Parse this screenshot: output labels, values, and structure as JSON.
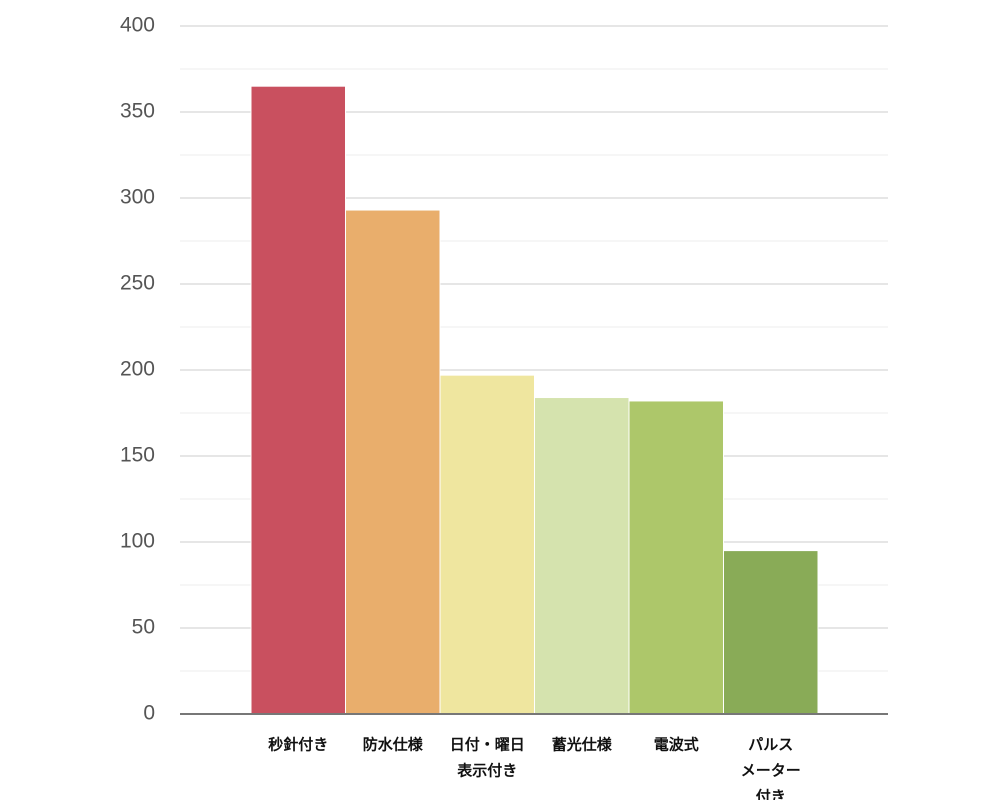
{
  "chart_data": {
    "type": "bar",
    "categories": [
      [
        "秒針付き"
      ],
      [
        "防水仕様"
      ],
      [
        "日付・曜日",
        "表示付き"
      ],
      [
        "蓄光仕様"
      ],
      [
        "電波式"
      ],
      [
        "パルス",
        "メーター",
        "付き"
      ]
    ],
    "values": [
      365,
      293,
      197,
      184,
      182,
      95
    ],
    "colors": [
      "#c9505f",
      "#e9ae6c",
      "#efe69f",
      "#d5e3ae",
      "#adc76a",
      "#89ab57"
    ],
    "ylim": [
      0,
      400
    ],
    "yticks": [
      0,
      50,
      100,
      150,
      200,
      250,
      300,
      350,
      400
    ],
    "minor_yticks": [
      25,
      75,
      125,
      175,
      225,
      275,
      325,
      375
    ],
    "grid": true
  }
}
